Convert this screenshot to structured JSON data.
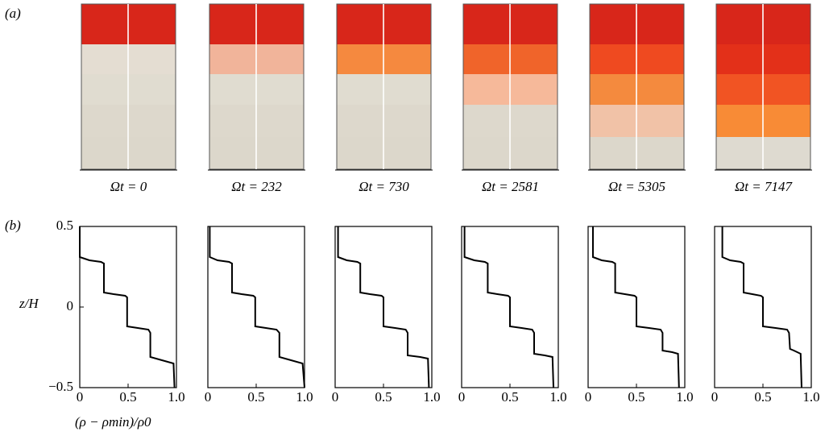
{
  "panel_labels": [
    "(a)",
    "(b)"
  ],
  "photos": [
    {
      "caption": "Ωt = 0",
      "layers": [
        "#d8261a",
        "#e4ddd2",
        "#e0dcd0",
        "#ddd8cc",
        "#dcd7cb"
      ]
    },
    {
      "caption": "Ωt = 232",
      "layers": [
        "#d8261a",
        "#f1b49a",
        "#e0dcd0",
        "#ddd8cc",
        "#dcd7cb"
      ]
    },
    {
      "caption": "Ωt = 730",
      "layers": [
        "#d8261a",
        "#f5893f",
        "#e0dcd0",
        "#ddd8cc",
        "#dcd7cb"
      ]
    },
    {
      "caption": "Ωt = 2581",
      "layers": [
        "#d8261a",
        "#f0642a",
        "#f6b99a",
        "#ddd8cc",
        "#dcd7cb"
      ]
    },
    {
      "caption": "Ωt = 5305",
      "layers": [
        "#d8261a",
        "#ef4a20",
        "#f48a3e",
        "#f1c2a7",
        "#dcd7cb"
      ]
    },
    {
      "caption": "Ωt = 7147",
      "layers": [
        "#d8261a",
        "#e33019",
        "#f15423",
        "#f88b36",
        "#dedad0"
      ]
    }
  ],
  "chart_data": [
    {
      "type": "line",
      "ylabel": "z/H",
      "xlabel": "(ρ − ρmin)/ρ0",
      "color": "#000000",
      "x": [
        0,
        0,
        0.1,
        0.22,
        0.25,
        0.25,
        0.35,
        0.47,
        0.49,
        0.49,
        0.6,
        0.71,
        0.73,
        0.73,
        0.85,
        0.97,
        0.98
      ],
      "values": [
        0.5,
        0.31,
        0.29,
        0.28,
        0.27,
        0.09,
        0.08,
        0.07,
        0.06,
        -0.12,
        -0.13,
        -0.14,
        -0.16,
        -0.31,
        -0.33,
        -0.35,
        -0.5
      ],
      "xlim": [
        0,
        1
      ],
      "ylim": [
        -0.5,
        0.5
      ],
      "xticks": [
        0,
        0.5,
        {
          "value": 1,
          "label": "1.0"
        }
      ],
      "yticks": [
        {
          "value": -0.5,
          "label": "−0.5"
        },
        0,
        0.5
      ]
    },
    {
      "type": "line",
      "color": "#000000",
      "x": [
        0.02,
        0.02,
        0.1,
        0.22,
        0.25,
        0.25,
        0.35,
        0.47,
        0.49,
        0.49,
        0.6,
        0.71,
        0.74,
        0.74,
        0.86,
        0.98,
        1.0
      ],
      "values": [
        0.5,
        0.31,
        0.29,
        0.28,
        0.27,
        0.09,
        0.08,
        0.07,
        0.06,
        -0.12,
        -0.13,
        -0.14,
        -0.16,
        -0.31,
        -0.33,
        -0.35,
        -0.5
      ],
      "xlim": [
        0,
        1
      ],
      "ylim": [
        -0.5,
        0.5
      ],
      "xticks": [
        0,
        0.5,
        {
          "value": 1,
          "label": "1.0"
        }
      ]
    },
    {
      "type": "line",
      "color": "#000000",
      "x": [
        0.03,
        0.03,
        0.12,
        0.23,
        0.26,
        0.26,
        0.36,
        0.48,
        0.5,
        0.5,
        0.62,
        0.73,
        0.75,
        0.75,
        0.88,
        0.96,
        0.97
      ],
      "values": [
        0.5,
        0.31,
        0.29,
        0.28,
        0.27,
        0.09,
        0.08,
        0.07,
        0.06,
        -0.12,
        -0.13,
        -0.14,
        -0.16,
        -0.3,
        -0.31,
        -0.32,
        -0.5
      ],
      "xlim": [
        0,
        1
      ],
      "ylim": [
        -0.5,
        0.5
      ],
      "xticks": [
        0,
        0.5,
        {
          "value": 1,
          "label": "1.0"
        }
      ]
    },
    {
      "type": "line",
      "color": "#000000",
      "x": [
        0.03,
        0.03,
        0.13,
        0.24,
        0.27,
        0.27,
        0.37,
        0.48,
        0.5,
        0.5,
        0.62,
        0.73,
        0.75,
        0.75,
        0.86,
        0.94,
        0.95
      ],
      "values": [
        0.5,
        0.31,
        0.29,
        0.28,
        0.27,
        0.09,
        0.08,
        0.07,
        0.06,
        -0.12,
        -0.13,
        -0.14,
        -0.16,
        -0.29,
        -0.3,
        -0.31,
        -0.5
      ],
      "xlim": [
        0,
        1
      ],
      "ylim": [
        -0.5,
        0.5
      ],
      "xticks": [
        0,
        0.5,
        {
          "value": 1,
          "label": "1.0"
        }
      ]
    },
    {
      "type": "line",
      "color": "#000000",
      "x": [
        0.05,
        0.05,
        0.14,
        0.25,
        0.28,
        0.28,
        0.38,
        0.48,
        0.5,
        0.5,
        0.63,
        0.75,
        0.77,
        0.77,
        0.87,
        0.93,
        0.94
      ],
      "values": [
        0.5,
        0.31,
        0.29,
        0.28,
        0.27,
        0.09,
        0.08,
        0.07,
        0.06,
        -0.12,
        -0.13,
        -0.14,
        -0.16,
        -0.27,
        -0.28,
        -0.29,
        -0.5
      ],
      "xlim": [
        0,
        1
      ],
      "ylim": [
        -0.5,
        0.5
      ],
      "xticks": [
        0,
        0.5,
        {
          "value": 1,
          "label": "1.0"
        }
      ]
    },
    {
      "type": "line",
      "color": "#000000",
      "x": [
        0.08,
        0.08,
        0.16,
        0.27,
        0.3,
        0.3,
        0.39,
        0.48,
        0.5,
        0.5,
        0.63,
        0.75,
        0.77,
        0.78,
        0.82,
        0.89,
        0.9
      ],
      "values": [
        0.5,
        0.31,
        0.29,
        0.28,
        0.27,
        0.09,
        0.08,
        0.07,
        0.06,
        -0.12,
        -0.13,
        -0.14,
        -0.16,
        -0.26,
        -0.27,
        -0.29,
        -0.5
      ],
      "xlim": [
        0,
        1
      ],
      "ylim": [
        -0.5,
        0.5
      ],
      "xticks": [
        0,
        0.5,
        {
          "value": 1,
          "label": "1.0"
        }
      ]
    }
  ]
}
